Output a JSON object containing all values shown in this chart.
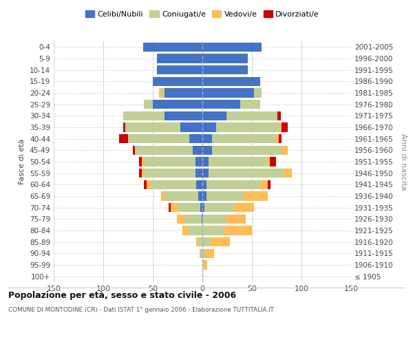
{
  "age_groups": [
    "100+",
    "95-99",
    "90-94",
    "85-89",
    "80-84",
    "75-79",
    "70-74",
    "65-69",
    "60-64",
    "55-59",
    "50-54",
    "45-49",
    "40-44",
    "35-39",
    "30-34",
    "25-29",
    "20-24",
    "15-19",
    "10-14",
    "5-9",
    "0-4"
  ],
  "birth_years": [
    "≤ 1905",
    "1906-1910",
    "1911-1915",
    "1916-1920",
    "1921-1925",
    "1926-1930",
    "1931-1935",
    "1936-1940",
    "1941-1945",
    "1946-1950",
    "1951-1955",
    "1956-1960",
    "1961-1965",
    "1966-1970",
    "1971-1975",
    "1976-1980",
    "1981-1985",
    "1986-1990",
    "1991-1995",
    "1996-2000",
    "2001-2005"
  ],
  "males_celibi": [
    0,
    0,
    0,
    0,
    0,
    1,
    2,
    4,
    6,
    7,
    7,
    10,
    13,
    22,
    38,
    50,
    38,
    50,
    46,
    46,
    60
  ],
  "males_coniugati": [
    0,
    0,
    2,
    4,
    14,
    17,
    22,
    34,
    46,
    52,
    52,
    58,
    62,
    56,
    42,
    9,
    4,
    0,
    0,
    0,
    0
  ],
  "males_vedovi": [
    0,
    0,
    1,
    2,
    6,
    8,
    8,
    4,
    4,
    2,
    2,
    0,
    0,
    0,
    0,
    0,
    2,
    0,
    0,
    0,
    0
  ],
  "males_divorziati": [
    0,
    0,
    0,
    0,
    0,
    0,
    2,
    0,
    3,
    3,
    3,
    2,
    9,
    2,
    0,
    0,
    0,
    0,
    0,
    0,
    0
  ],
  "females_nubili": [
    0,
    0,
    0,
    0,
    0,
    0,
    2,
    4,
    4,
    6,
    6,
    10,
    10,
    14,
    24,
    38,
    52,
    58,
    46,
    46,
    60
  ],
  "females_coniugate": [
    0,
    2,
    3,
    8,
    22,
    24,
    30,
    38,
    54,
    76,
    60,
    70,
    64,
    64,
    52,
    20,
    8,
    0,
    0,
    0,
    0
  ],
  "females_vedove": [
    0,
    3,
    9,
    20,
    28,
    20,
    20,
    24,
    8,
    8,
    2,
    6,
    3,
    2,
    0,
    0,
    0,
    0,
    0,
    0,
    0
  ],
  "females_divorziate": [
    0,
    0,
    0,
    0,
    0,
    0,
    0,
    0,
    3,
    0,
    6,
    0,
    3,
    6,
    3,
    0,
    0,
    0,
    0,
    0,
    0
  ],
  "colors": {
    "celibi": "#4472C4",
    "coniugati": "#BFCF96",
    "vedovi": "#FFBB55",
    "divorziati": "#CC0000"
  },
  "xlim": 150,
  "title": "Popolazione per età, sesso e stato civile - 2006",
  "subtitle": "COMUNE DI MONTODINE (CR) - Dati ISTAT 1° gennaio 2006 - Elaborazione TUTTITALIA.IT",
  "ylabel": "Fasce di età",
  "y2label": "Anni di nascita",
  "legend_labels": [
    "Celibi/Nubili",
    "Coniugati/e",
    "Vedovi/e",
    "Divorziati/e"
  ]
}
